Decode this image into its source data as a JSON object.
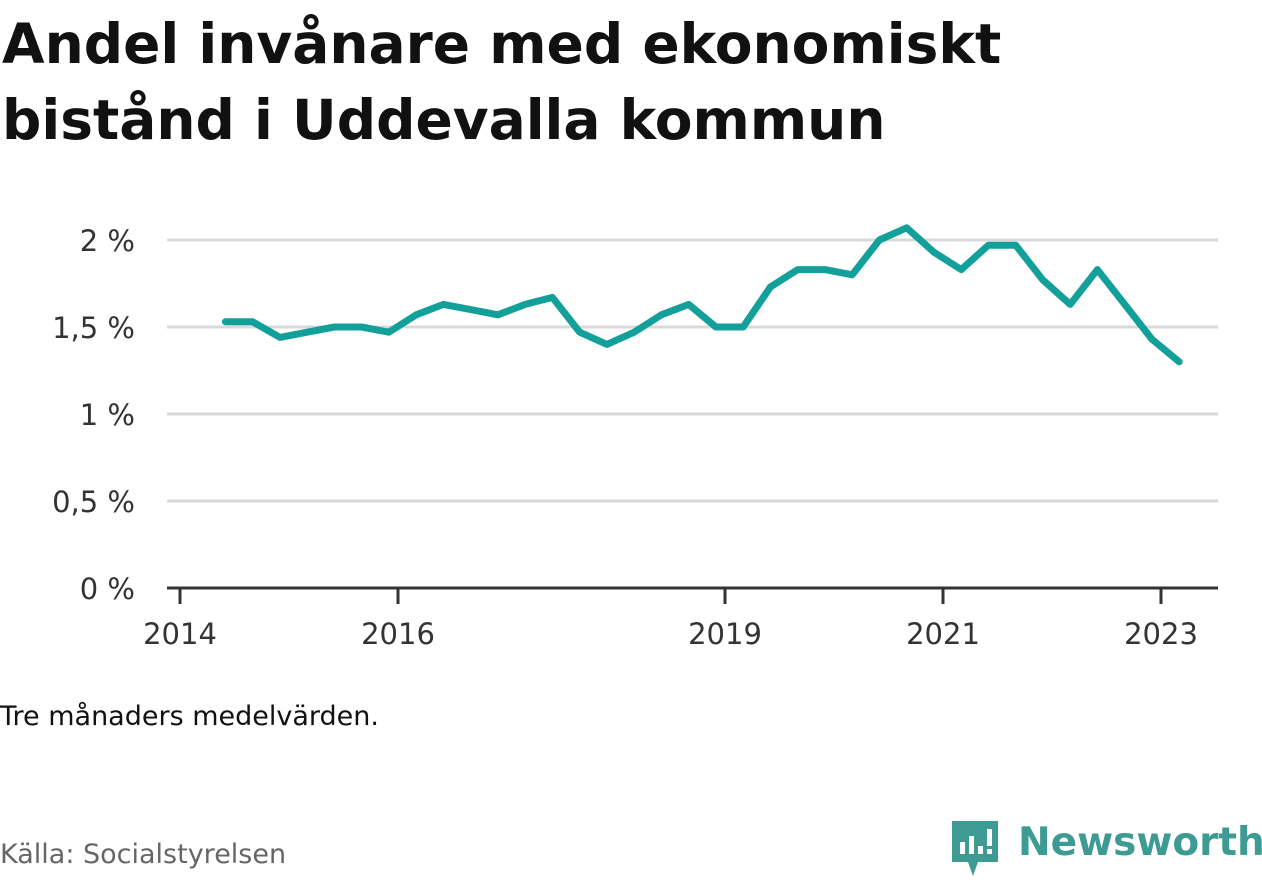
{
  "title": "Andel invånare med ekonomiskt bistånd i Uddevalla kommun",
  "note": "Tre månaders medelvärden.",
  "source": "Källa: Socialstyrelsen",
  "brand": {
    "name": "Newsworthy",
    "icon": "newsworthy-logo-icon",
    "color": "#3d9b93"
  },
  "chart_data": {
    "type": "line",
    "title": "Andel invånare med ekonomiskt bistånd i Uddevalla kommun",
    "xlabel": "",
    "ylabel": "",
    "x_ticks": [
      "2014",
      "2016",
      "2019",
      "2021",
      "2023"
    ],
    "y_ticks": [
      "0 %",
      "0,5 %",
      "1 %",
      "1,5 %",
      "2 %"
    ],
    "ylim": [
      0,
      2.1
    ],
    "grid": true,
    "line_color": "#14a09a",
    "series": [
      {
        "x": [
          "2014-06",
          "2014-09",
          "2014-12",
          "2015-03",
          "2015-06",
          "2015-09",
          "2015-12",
          "2016-03",
          "2016-06",
          "2016-09",
          "2016-12",
          "2017-03",
          "2017-06",
          "2017-09",
          "2017-12",
          "2018-03",
          "2018-06",
          "2018-09",
          "2018-12",
          "2019-03",
          "2019-06",
          "2019-09",
          "2019-12",
          "2020-03",
          "2020-06",
          "2020-09",
          "2020-12",
          "2021-03",
          "2021-06",
          "2021-09",
          "2021-12",
          "2022-03",
          "2022-06",
          "2022-09",
          "2022-12",
          "2023-03"
        ],
        "values": [
          1.53,
          1.53,
          1.44,
          1.47,
          1.5,
          1.5,
          1.47,
          1.57,
          1.63,
          1.6,
          1.57,
          1.63,
          1.67,
          1.47,
          1.4,
          1.47,
          1.57,
          1.63,
          1.5,
          1.5,
          1.73,
          1.83,
          1.83,
          1.8,
          2.0,
          2.07,
          1.93,
          1.83,
          1.97,
          1.97,
          1.77,
          1.63,
          1.83,
          1.63,
          1.43,
          1.3
        ]
      }
    ]
  }
}
